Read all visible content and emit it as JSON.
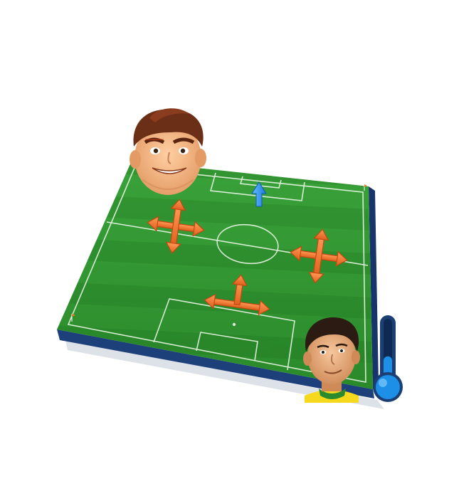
{
  "scene": {
    "pitch": {
      "grass_light": "#3fa33a",
      "grass_dark": "#2f8a2c",
      "base_color": "#1d3f7a",
      "line_color": "#e9f5e4"
    },
    "formation": {
      "arrow_color": "#f07a33",
      "arrow_outline": "#c24a12",
      "move_indicator_count": 3,
      "directional_indicator_count": 1
    },
    "top_player": {
      "description_icon": "player-head-icon",
      "hair_color": "#6b2e16",
      "skin_color": "#f2b283"
    },
    "bottom_player": {
      "description_icon": "player-head-icon",
      "hair_color": "#2b1b12",
      "shirt_color": "#f6d91c"
    },
    "thermometer": {
      "icon": "thermometer-icon",
      "fill_color": "#1e8fe6",
      "level": 0.45
    },
    "up_arrow": {
      "icon": "up-arrow-icon",
      "color": "#2d8ae6"
    }
  }
}
